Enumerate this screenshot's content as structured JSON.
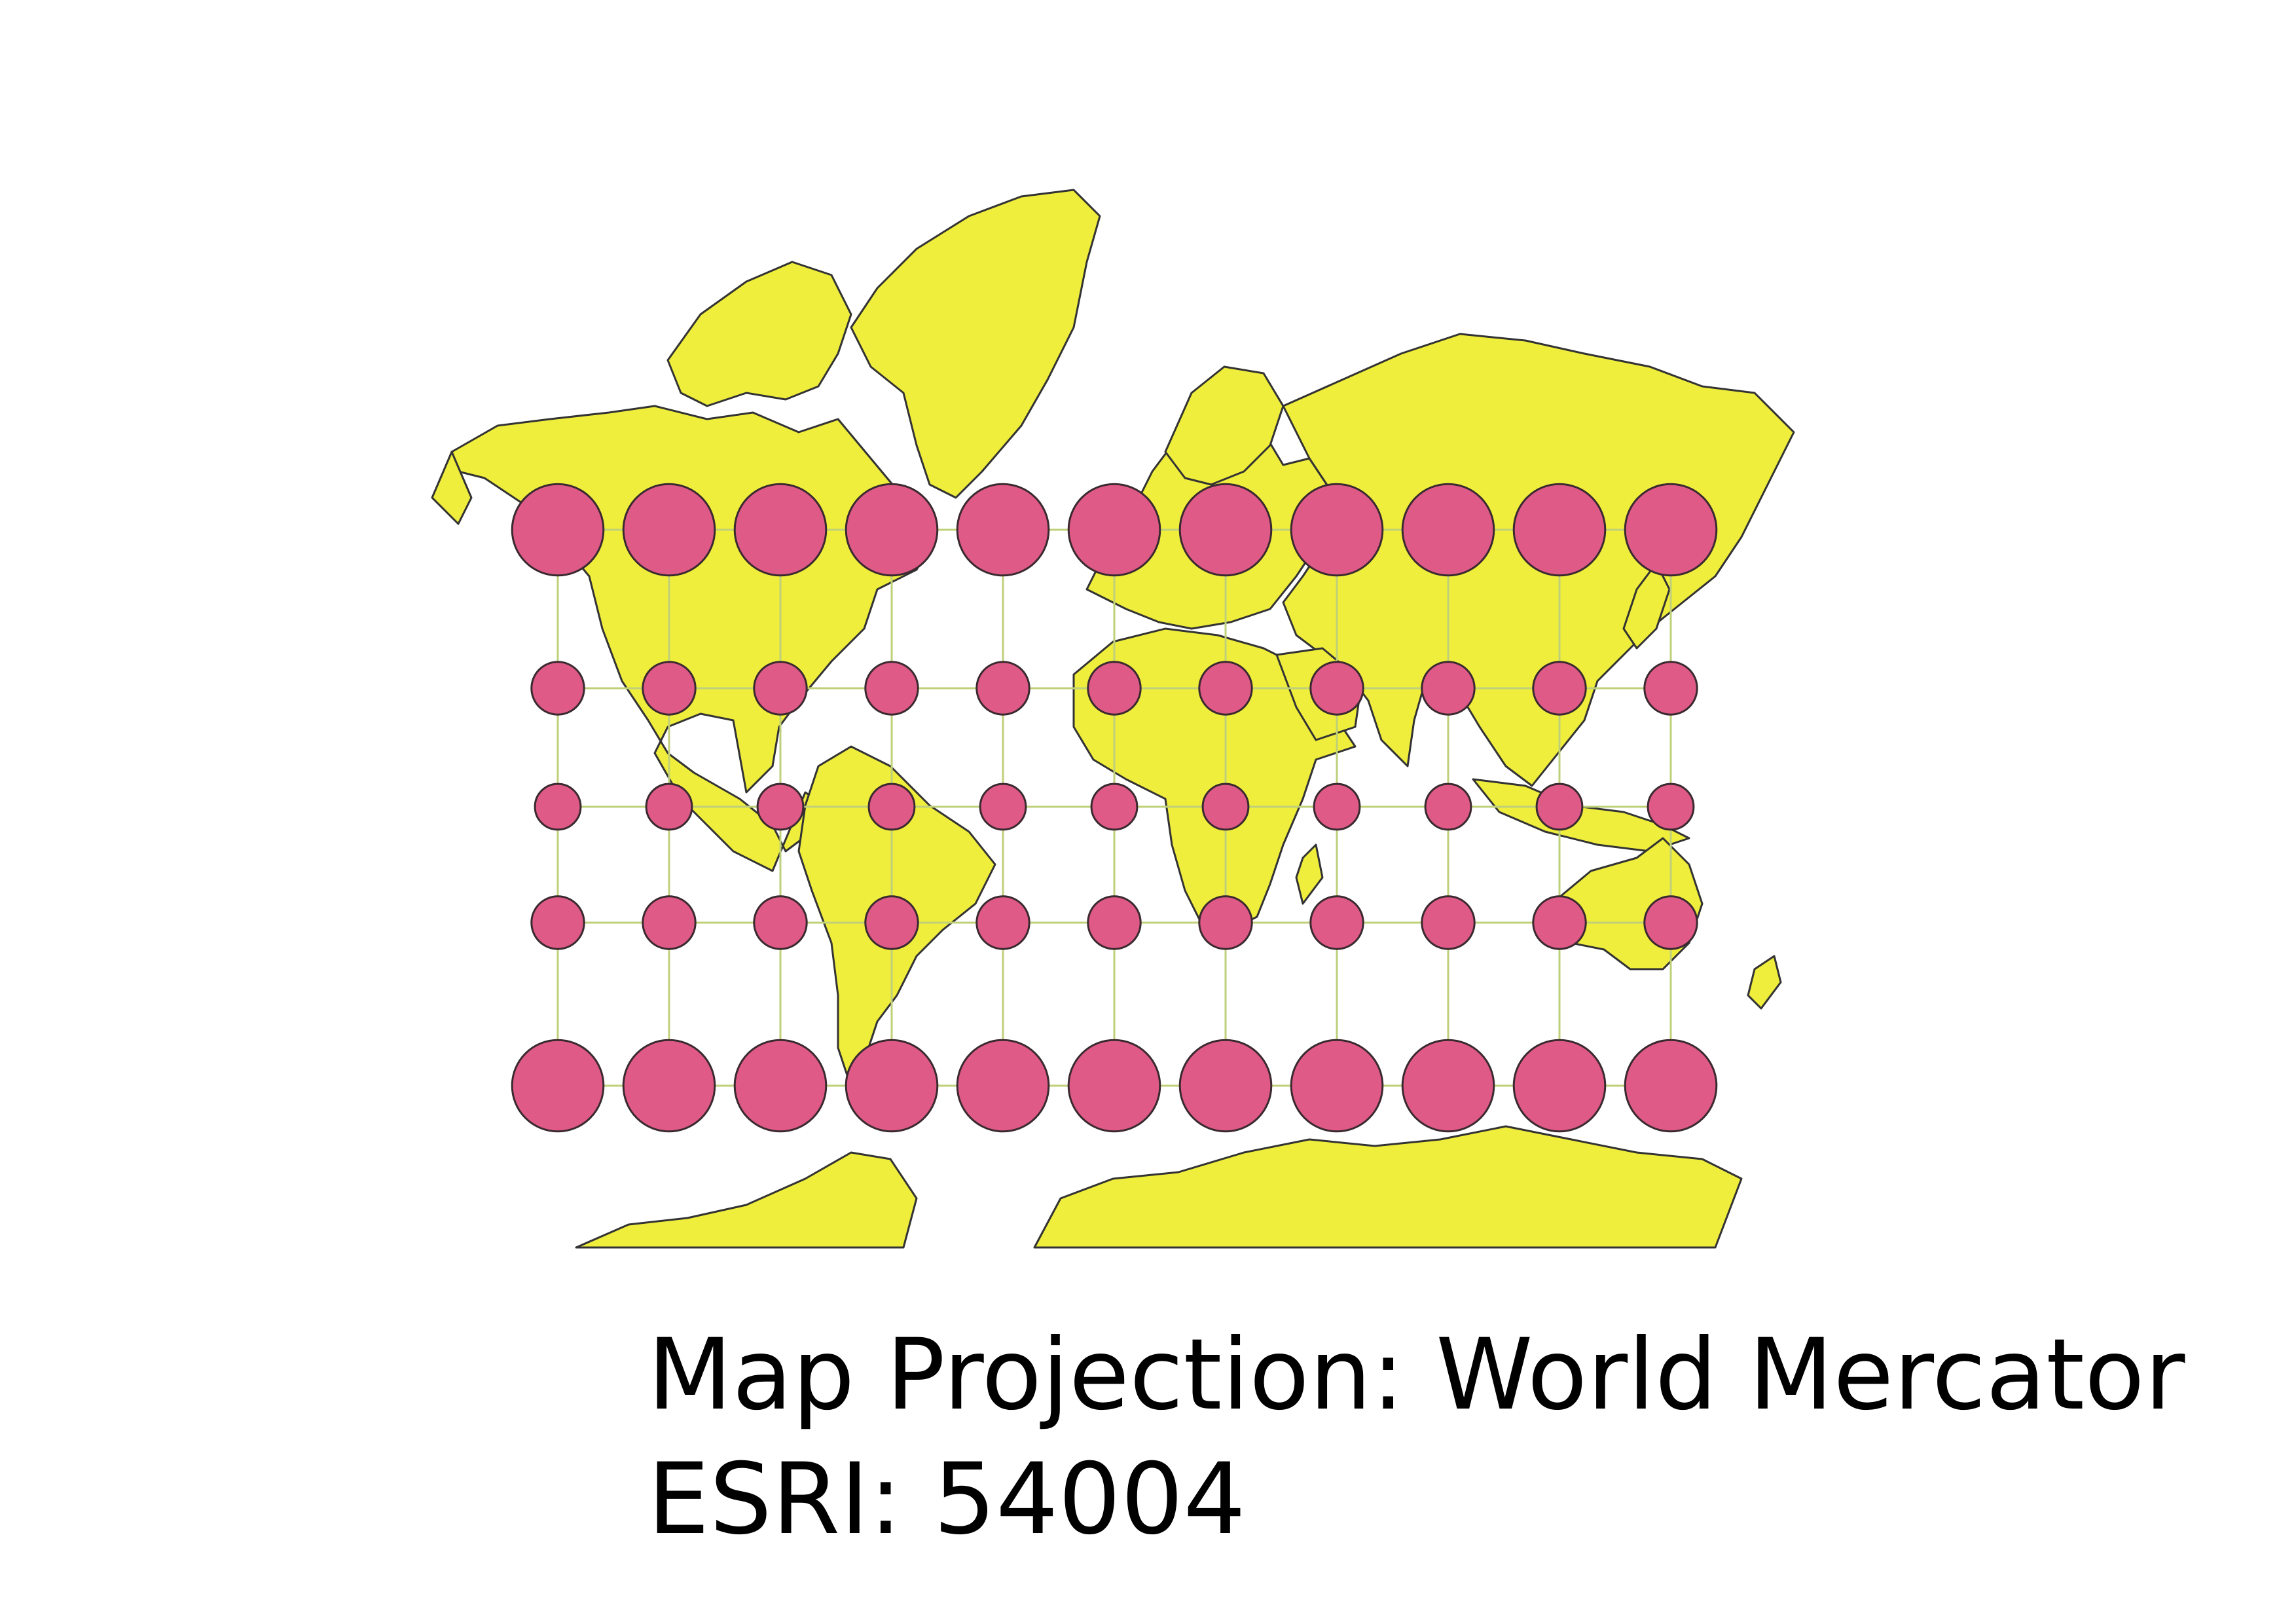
{
  "map": {
    "projection": "World Mercator",
    "land_color": "#f0ee3c",
    "coastline_color": "#333333",
    "graticule_color": "#bfd07a",
    "indicatrix_fill": "#e05a87",
    "indicatrix_stroke": "#3a2a30",
    "indicatrix": {
      "longitudes": [
        -150,
        -120,
        -90,
        -60,
        -30,
        0,
        30,
        60,
        90,
        120,
        150
      ],
      "latitudes": [
        60,
        30,
        0,
        -30,
        -60
      ],
      "relative_scale_by_latitude": [
        2.0,
        1.15,
        1.0,
        1.15,
        2.0
      ]
    },
    "graticule": {
      "longitudes": [
        -150,
        -120,
        -90,
        -60,
        -30,
        0,
        30,
        60,
        90,
        120,
        150
      ],
      "latitudes": [
        60,
        30,
        0,
        -30,
        -60
      ]
    }
  },
  "caption": {
    "title": "Map Projection: World Mercator",
    "code": "ESRI: 54004"
  }
}
